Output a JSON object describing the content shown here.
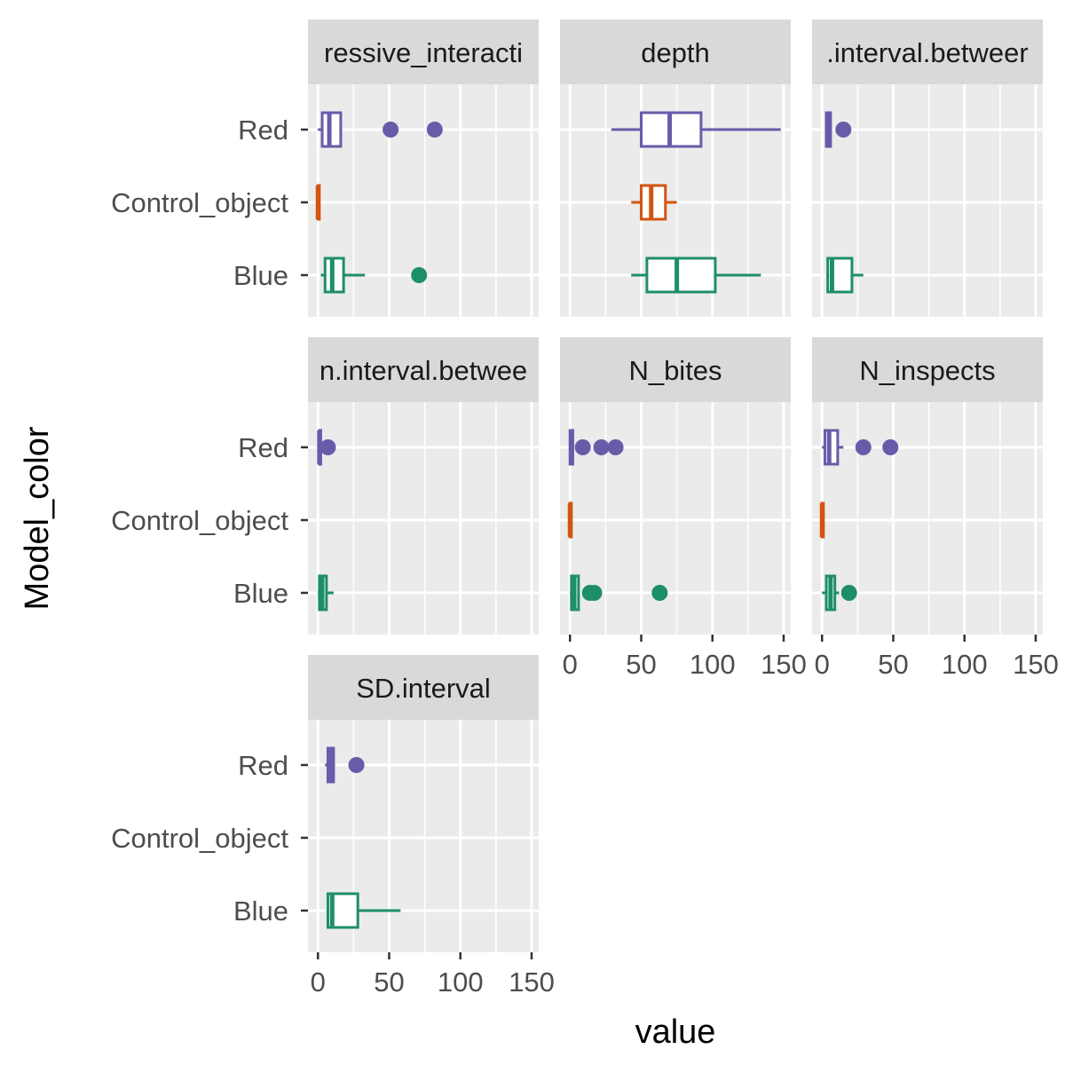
{
  "chart_data": {
    "type": "boxplot",
    "xlabel": "value",
    "ylabel": "Model_color",
    "xlim": [
      -7,
      155
    ],
    "xticks": [
      0,
      50,
      100,
      150
    ],
    "tick_labels": [
      "0",
      "50",
      "100",
      "150"
    ],
    "categories": [
      "Red",
      "Control_object",
      "Blue"
    ],
    "colors": {
      "Red": "#6a5aaa",
      "Control_object": "#d35411",
      "Blue": "#1e8e6a"
    },
    "facets": [
      {
        "label": "ressive_interacti",
        "boxes": {
          "Red": {
            "whisker_low": 0,
            "q1": 3,
            "median": 8,
            "q3": 16,
            "whisker_high": 17,
            "outliers": [
              51,
              82
            ]
          },
          "Control_object": {
            "whisker_low": 0,
            "q1": 0,
            "median": 0,
            "q3": 1,
            "whisker_high": 1,
            "outliers": []
          },
          "Blue": {
            "whisker_low": 2,
            "q1": 5,
            "median": 10,
            "q3": 18,
            "whisker_high": 33,
            "outliers": [
              71
            ]
          }
        }
      },
      {
        "label": "depth",
        "boxes": {
          "Red": {
            "whisker_low": 29,
            "q1": 50,
            "median": 70,
            "q3": 92,
            "whisker_high": 148,
            "outliers": []
          },
          "Control_object": {
            "whisker_low": 43,
            "q1": 50,
            "median": 57,
            "q3": 67,
            "whisker_high": 75,
            "outliers": []
          },
          "Blue": {
            "whisker_low": 43,
            "q1": 54,
            "median": 75,
            "q3": 102,
            "whisker_high": 134,
            "outliers": []
          }
        }
      },
      {
        "label": ".interval.betweer",
        "boxes": {
          "Red": {
            "whisker_low": 2,
            "q1": 3,
            "median": 4,
            "q3": 6,
            "whisker_high": 7,
            "outliers": [
              15
            ]
          },
          "Control_object": {
            "whisker_low": null,
            "q1": null,
            "median": null,
            "q3": null,
            "whisker_high": null,
            "outliers": []
          },
          "Blue": {
            "whisker_low": 3,
            "q1": 4,
            "median": 7,
            "q3": 21,
            "whisker_high": 29,
            "outliers": []
          }
        }
      },
      {
        "label": "n.interval.betwee",
        "boxes": {
          "Red": {
            "whisker_low": 0,
            "q1": 1,
            "median": 1,
            "q3": 2,
            "whisker_high": 3,
            "outliers": [
              7
            ]
          },
          "Control_object": {
            "whisker_low": null,
            "q1": null,
            "median": null,
            "q3": null,
            "whisker_high": null,
            "outliers": []
          },
          "Blue": {
            "whisker_low": 0,
            "q1": 1,
            "median": 3,
            "q3": 6,
            "whisker_high": 11,
            "outliers": []
          }
        }
      },
      {
        "label": "N_bites",
        "boxes": {
          "Red": {
            "whisker_low": 0,
            "q1": 0,
            "median": 1,
            "q3": 2,
            "whisker_high": 3,
            "outliers": [
              9,
              22,
              32
            ]
          },
          "Control_object": {
            "whisker_low": 0,
            "q1": 0,
            "median": 0,
            "q3": 1,
            "whisker_high": 1,
            "outliers": []
          },
          "Blue": {
            "whisker_low": 0,
            "q1": 1,
            "median": 3,
            "q3": 6,
            "whisker_high": 7,
            "outliers": [
              14,
              17,
              63
            ]
          }
        }
      },
      {
        "label": "N_inspects",
        "boxes": {
          "Red": {
            "whisker_low": 0,
            "q1": 2,
            "median": 5,
            "q3": 11,
            "whisker_high": 15,
            "outliers": [
              29,
              48
            ]
          },
          "Control_object": {
            "whisker_low": 0,
            "q1": 0,
            "median": 0,
            "q3": 1,
            "whisker_high": 1,
            "outliers": []
          },
          "Blue": {
            "whisker_low": 0,
            "q1": 3,
            "median": 6,
            "q3": 9,
            "whisker_high": 12,
            "outliers": [
              19
            ]
          }
        }
      },
      {
        "label": "SD.interval",
        "boxes": {
          "Red": {
            "whisker_low": 5,
            "q1": 7,
            "median": 9,
            "q3": 11,
            "whisker_high": 12,
            "outliers": [
              27
            ]
          },
          "Control_object": {
            "whisker_low": null,
            "q1": null,
            "median": null,
            "q3": null,
            "whisker_high": null,
            "outliers": []
          },
          "Blue": {
            "whisker_low": 6,
            "q1": 7,
            "median": 10,
            "q3": 28,
            "whisker_high": 58,
            "outliers": []
          }
        }
      }
    ]
  }
}
